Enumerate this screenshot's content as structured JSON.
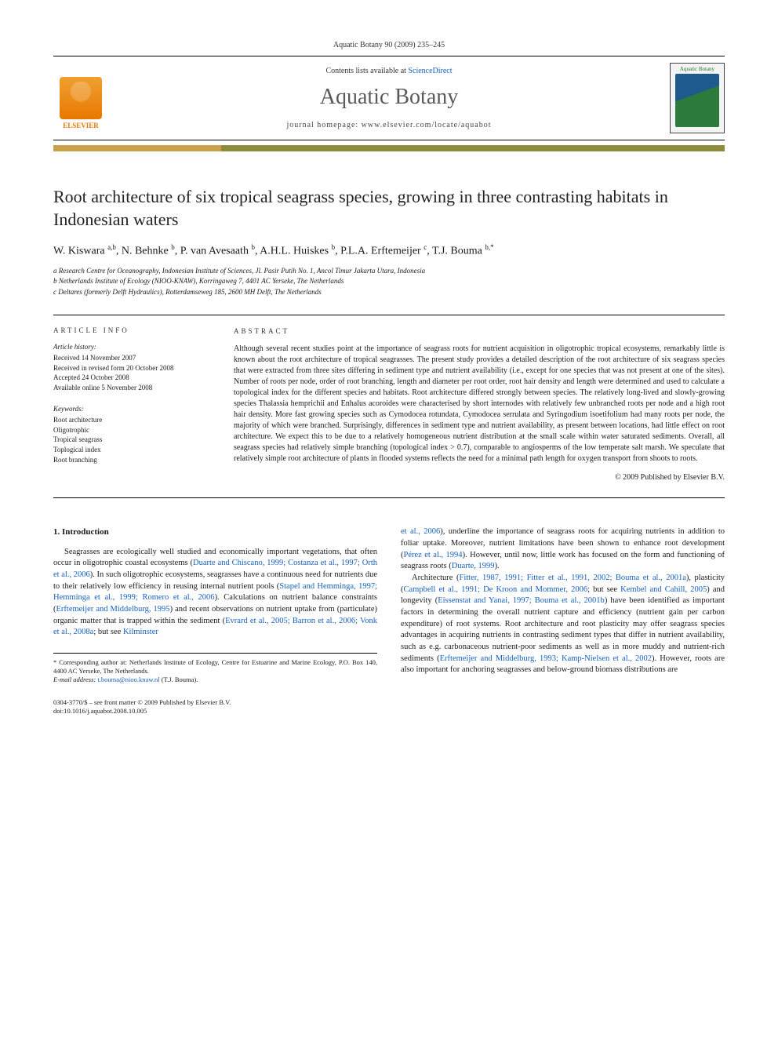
{
  "journal_ref": "Aquatic Botany 90 (2009) 235–245",
  "header": {
    "publisher": "ELSEVIER",
    "contents_prefix": "Contents lists available at ",
    "contents_link": "ScienceDirect",
    "journal_name": "Aquatic Botany",
    "homepage_label": "journal homepage: www.elsevier.com/locate/aquabot",
    "journal_badge_name": "Aquatic Botany"
  },
  "title": "Root architecture of six tropical seagrass species, growing in three contrasting habitats in Indonesian waters",
  "authors_html": "W. Kiswara <sup>a,b</sup>, N. Behnke <sup>b</sup>, P. van Avesaath <sup>b</sup>, A.H.L. Huiskes <sup>b</sup>, P.L.A. Erftemeijer <sup>c</sup>, T.J. Bouma <sup>b,*</sup>",
  "affiliations": [
    "a Research Centre for Oceanography, Indonesian Institute of Sciences, Jl. Pasir Putih No. 1, Ancol Timur Jakarta Utara, Indonesia",
    "b Netherlands Institute of Ecology (NIOO-KNAW), Korringaweg 7, 4401 AC Yerseke, The Netherlands",
    "c Deltares (formerly Delft Hydraulics), Rotterdamseweg 185, 2600 MH Delft, The Netherlands"
  ],
  "article_info": {
    "heading": "ARTICLE INFO",
    "history_label": "Article history:",
    "history": [
      "Received 14 November 2007",
      "Received in revised form 20 October 2008",
      "Accepted 24 October 2008",
      "Available online 5 November 2008"
    ],
    "keywords_label": "Keywords:",
    "keywords": [
      "Root architecture",
      "Oligotrophic",
      "Tropical seagrass",
      "Toplogical index",
      "Root branching"
    ]
  },
  "abstract": {
    "heading": "ABSTRACT",
    "text": "Although several recent studies point at the importance of seagrass roots for nutrient acquisition in oligotrophic tropical ecosystems, remarkably little is known about the root architecture of tropical seagrasses. The present study provides a detailed description of the root architecture of six seagrass species that were extracted from three sites differing in sediment type and nutrient availability (i.e., except for one species that was not present at one of the sites). Number of roots per node, order of root branching, length and diameter per root order, root hair density and length were determined and used to calculate a topological index for the different species and habitats. Root architecture differed strongly between species. The relatively long-lived and slowly-growing species Thalassia hemprichii and Enhalus acoroides were characterised by short internodes with relatively few unbranched roots per node and a high root hair density. More fast growing species such as Cymodocea rotundata, Cymodocea serrulata and Syringodium isoetifolium had many roots per node, the majority of which were branched. Surprisingly, differences in sediment type and nutrient availability, as present between locations, had little effect on root architecture. We expect this to be due to a relatively homogeneous nutrient distribution at the small scale within water saturated sediments. Overall, all seagrass species had relatively simple branching (topological index > 0.7), comparable to angiosperms of the low temperate salt marsh. We speculate that relatively simple root architecture of plants in flooded systems reflects the need for a minimal path length for oxygen transport from shoots to roots.",
    "copyright": "© 2009 Published by Elsevier B.V."
  },
  "section1": {
    "heading": "1. Introduction",
    "para1_pre": "Seagrasses are ecologically well studied and economically important vegetations, that often occur in oligotrophic coastal ecosystems (",
    "para1_link1": "Duarte and Chiscano, 1999; Costanza et al., 1997; Orth et al., 2006",
    "para1_mid1": "). In such oligotrophic ecosystems, seagrasses have a continuous need for nutrients due to their relatively low efficiency in reusing internal nutrient pools (",
    "para1_link2": "Stapel and Hemminga, 1997; Hemminga et al., 1999; Romero et al., 2006",
    "para1_mid2": "). Calculations on nutrient balance constraints (",
    "para1_link3": "Erftemeijer and Middelburg, 1995",
    "para1_mid3": ") and recent observations on nutrient uptake from (particulate) organic matter that is trapped within the sediment (",
    "para1_link4": "Evrard et al., 2005; Barron et al., 2006; Vonk et al., 2008a",
    "para1_mid4": "; but see ",
    "para1_link5": "Kilminster",
    "col2_link1": "et al., 2006",
    "col2_mid1": "), underline the importance of seagrass roots for acquiring nutrients in addition to foliar uptake. Moreover, nutrient limitations have been shown to enhance root development (",
    "col2_link2": "Pérez et al., 1994",
    "col2_mid2": "). However, until now, little work has focused on the form and functioning of seagrass roots (",
    "col2_link3": "Duarte, 1999",
    "col2_mid3": ").",
    "para2_pre": "Architecture (",
    "para2_link1": "Fitter, 1987, 1991; Fitter et al., 1991, 2002; Bouma et al., 2001a",
    "para2_mid1": "), plasticity (",
    "para2_link2": "Campbell et al., 1991; De Kroon and Mommer, 2006",
    "para2_mid2": "; but see ",
    "para2_link3": "Kembel and Cahill, 2005",
    "para2_mid3": ") and longevity (",
    "para2_link4": "Eissenstat and Yanai, 1997; Bouma et al., 2001b",
    "para2_mid4": ") have been identified as important factors in determining the overall nutrient capture and efficiency (nutrient gain per carbon expenditure) of root systems. Root architecture and root plasticity may offer seagrass species advantages in acquiring nutrients in contrasting sediment types that differ in nutrient availability, such as e.g. carbonaceous nutrient-poor sediments as well as in more muddy and nutrient-rich sediments (",
    "para2_link5": "Erftemeijer and Middelburg, 1993; Kamp-Nielsen et al., 2002",
    "para2_mid5": "). However, roots are also important for anchoring seagrasses and below-ground biomass distributions are"
  },
  "footnote": {
    "corr": "* Corresponding author at: Netherlands Institute of Ecology, Centre for Estuarine and Marine Ecology, P.O. Box 140, 4400 AC Yerseke, The Netherlands.",
    "email_label": "E-mail address: ",
    "email_link": "t.bouma@nioo.knaw.nl",
    "email_tail": " (T.J. Bouma)."
  },
  "footer": {
    "line1": "0304-3770/$ – see front matter © 2009 Published by Elsevier B.V.",
    "line2": "doi:10.1016/j.aquabot.2008.10.005"
  },
  "colors": {
    "link": "#1560bd",
    "bar_left": "#c9a14a",
    "bar_right": "#8c8c3a",
    "elsevier": "#e87800"
  }
}
